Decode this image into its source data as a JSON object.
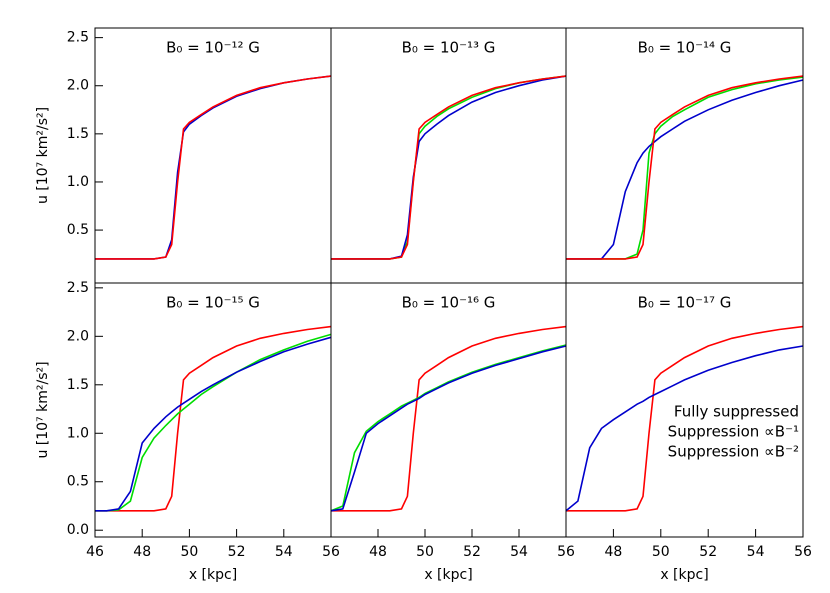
{
  "chart_data": [
    {
      "type": "line",
      "title": "B₀ = 10⁻¹² G",
      "ylabel": "u [10⁷ km²/s²]",
      "x": [
        46,
        46.5,
        47,
        47.5,
        48,
        48.5,
        49,
        49.25,
        49.5,
        49.75,
        50,
        50.5,
        51,
        52,
        53,
        54,
        55,
        56
      ],
      "xlim": [
        46,
        56
      ],
      "ylim": [
        -0.05,
        2.6
      ],
      "yticks": [
        0.5,
        {
          "value": 1,
          "label": "1.0"
        },
        1.5,
        {
          "value": 2,
          "label": "2.0"
        },
        2.5
      ],
      "series": [
        {
          "name": "Suppression ∝B⁻¹",
          "color": "#0000cc",
          "values": [
            0.2,
            0.2,
            0.2,
            0.2,
            0.2,
            0.2,
            0.22,
            0.4,
            1.1,
            1.52,
            1.6,
            1.69,
            1.77,
            1.89,
            1.97,
            2.03,
            2.07,
            2.1
          ]
        },
        {
          "name": "Fully suppressed",
          "color": "#ff0000",
          "values": [
            0.2,
            0.2,
            0.2,
            0.2,
            0.2,
            0.2,
            0.22,
            0.35,
            1.0,
            1.55,
            1.62,
            1.7,
            1.78,
            1.9,
            1.98,
            2.03,
            2.07,
            2.1
          ]
        }
      ]
    },
    {
      "type": "line",
      "title": "B₀ = 10⁻¹³ G",
      "x": [
        46,
        46.5,
        47,
        47.5,
        48,
        48.5,
        49,
        49.25,
        49.5,
        49.75,
        50,
        50.5,
        51,
        52,
        53,
        54,
        55,
        56
      ],
      "xlim": [
        46,
        56
      ],
      "ylim": [
        -0.05,
        2.6
      ],
      "series": [
        {
          "name": "Suppression ∝B⁻²",
          "color": "#00dd00",
          "values": [
            0.2,
            0.2,
            0.2,
            0.2,
            0.2,
            0.2,
            0.22,
            0.38,
            1.02,
            1.5,
            1.58,
            1.68,
            1.76,
            1.88,
            1.97,
            2.03,
            2.07,
            2.1
          ]
        },
        {
          "name": "Suppression ∝B⁻¹",
          "color": "#0000cc",
          "values": [
            0.2,
            0.2,
            0.2,
            0.2,
            0.2,
            0.2,
            0.23,
            0.45,
            1.05,
            1.42,
            1.5,
            1.6,
            1.69,
            1.83,
            1.93,
            2.0,
            2.06,
            2.1
          ]
        },
        {
          "name": "Fully suppressed",
          "color": "#ff0000",
          "values": [
            0.2,
            0.2,
            0.2,
            0.2,
            0.2,
            0.2,
            0.22,
            0.35,
            1.0,
            1.55,
            1.62,
            1.7,
            1.78,
            1.9,
            1.98,
            2.03,
            2.07,
            2.1
          ]
        }
      ]
    },
    {
      "type": "line",
      "title": "B₀ = 10⁻¹⁴ G",
      "x": [
        46,
        46.5,
        47,
        47.5,
        48,
        48.5,
        49,
        49.25,
        49.5,
        49.75,
        50,
        50.5,
        51,
        52,
        53,
        54,
        55,
        56
      ],
      "xlim": [
        46,
        56
      ],
      "ylim": [
        -0.05,
        2.6
      ],
      "series": [
        {
          "name": "Suppression ∝B⁻²",
          "color": "#00dd00",
          "values": [
            0.2,
            0.2,
            0.2,
            0.2,
            0.2,
            0.2,
            0.25,
            0.5,
            1.3,
            1.5,
            1.58,
            1.68,
            1.75,
            1.88,
            1.96,
            2.02,
            2.06,
            2.09
          ]
        },
        {
          "name": "Suppression ∝B⁻¹",
          "color": "#0000cc",
          "values": [
            0.2,
            0.2,
            0.2,
            0.2,
            0.35,
            0.9,
            1.2,
            1.3,
            1.37,
            1.42,
            1.47,
            1.55,
            1.63,
            1.75,
            1.85,
            1.93,
            2.0,
            2.06
          ]
        },
        {
          "name": "Fully suppressed",
          "color": "#ff0000",
          "values": [
            0.2,
            0.2,
            0.2,
            0.2,
            0.2,
            0.2,
            0.22,
            0.35,
            1.0,
            1.55,
            1.62,
            1.7,
            1.78,
            1.9,
            1.98,
            2.03,
            2.07,
            2.1
          ]
        }
      ]
    },
    {
      "type": "line",
      "title": "B₀ = 10⁻¹⁵ G",
      "xlabel": "x [kpc]",
      "ylabel": "u [10⁷ km²/s²]",
      "x": [
        46,
        46.5,
        47,
        47.5,
        48,
        48.5,
        49,
        49.25,
        49.5,
        49.75,
        50,
        50.5,
        51,
        52,
        53,
        54,
        55,
        56
      ],
      "xlim": [
        46,
        56
      ],
      "ylim": [
        -0.07,
        2.55
      ],
      "xticks": [
        46,
        48,
        50,
        52,
        54,
        56
      ],
      "yticks": [
        {
          "value": 0,
          "label": "0.0"
        },
        0.5,
        {
          "value": 1,
          "label": "1.0"
        },
        1.5,
        {
          "value": 2,
          "label": "2.0"
        },
        2.5
      ],
      "series": [
        {
          "name": "Fully suppressed",
          "color": "#ff0000",
          "values": [
            0.2,
            0.2,
            0.2,
            0.2,
            0.2,
            0.2,
            0.22,
            0.35,
            1.0,
            1.55,
            1.62,
            1.7,
            1.78,
            1.9,
            1.98,
            2.03,
            2.07,
            2.1
          ]
        },
        {
          "name": "Suppression ∝B⁻²",
          "color": "#00dd00",
          "values": [
            0.2,
            0.2,
            0.21,
            0.3,
            0.75,
            0.95,
            1.08,
            1.14,
            1.2,
            1.25,
            1.3,
            1.4,
            1.48,
            1.63,
            1.76,
            1.86,
            1.95,
            2.02
          ]
        },
        {
          "name": "Suppression ∝B⁻¹",
          "color": "#0000cc",
          "values": [
            0.2,
            0.2,
            0.22,
            0.4,
            0.9,
            1.05,
            1.17,
            1.22,
            1.27,
            1.31,
            1.35,
            1.43,
            1.5,
            1.63,
            1.74,
            1.84,
            1.92,
            1.99
          ]
        }
      ]
    },
    {
      "type": "line",
      "title": "B₀ = 10⁻¹⁶ G",
      "xlabel": "x [kpc]",
      "x": [
        46,
        46.5,
        47,
        47.5,
        48,
        48.5,
        49,
        49.25,
        49.5,
        49.75,
        50,
        50.5,
        51,
        52,
        53,
        54,
        55,
        56
      ],
      "xlim": [
        46,
        56
      ],
      "ylim": [
        -0.07,
        2.55
      ],
      "xticks": [
        48,
        50,
        52,
        54,
        56
      ],
      "series": [
        {
          "name": "Fully suppressed",
          "color": "#ff0000",
          "values": [
            0.2,
            0.2,
            0.2,
            0.2,
            0.2,
            0.2,
            0.22,
            0.35,
            1.0,
            1.55,
            1.62,
            1.7,
            1.78,
            1.9,
            1.98,
            2.03,
            2.07,
            2.1
          ]
        },
        {
          "name": "Suppression ∝B⁻²",
          "color": "#00dd00",
          "values": [
            0.2,
            0.25,
            0.8,
            1.02,
            1.12,
            1.2,
            1.28,
            1.31,
            1.34,
            1.37,
            1.41,
            1.47,
            1.53,
            1.63,
            1.71,
            1.78,
            1.85,
            1.91
          ]
        },
        {
          "name": "Suppression ∝B⁻¹",
          "color": "#0000cc",
          "values": [
            0.2,
            0.22,
            0.6,
            1.0,
            1.1,
            1.18,
            1.26,
            1.3,
            1.33,
            1.36,
            1.4,
            1.46,
            1.52,
            1.62,
            1.7,
            1.77,
            1.84,
            1.9
          ]
        }
      ]
    },
    {
      "type": "line",
      "title": "B₀ = 10⁻¹⁷ G",
      "xlabel": "x [kpc]",
      "x": [
        46,
        46.5,
        47,
        47.5,
        48,
        48.5,
        49,
        49.25,
        49.5,
        49.75,
        50,
        50.5,
        51,
        52,
        53,
        54,
        55,
        56
      ],
      "xlim": [
        46,
        56
      ],
      "ylim": [
        -0.07,
        2.55
      ],
      "xticks": [
        48,
        50,
        52,
        54,
        56
      ],
      "series": [
        {
          "name": "Fully suppressed",
          "color": "#ff0000",
          "values": [
            0.2,
            0.2,
            0.2,
            0.2,
            0.2,
            0.2,
            0.22,
            0.35,
            1.0,
            1.55,
            1.62,
            1.7,
            1.78,
            1.9,
            1.98,
            2.03,
            2.07,
            2.1
          ]
        },
        {
          "name": "Suppression ∝B⁻¹",
          "color": "#0000cc",
          "values": [
            0.2,
            0.3,
            0.85,
            1.05,
            1.14,
            1.22,
            1.3,
            1.33,
            1.37,
            1.4,
            1.43,
            1.49,
            1.55,
            1.65,
            1.73,
            1.8,
            1.86,
            1.9
          ]
        }
      ],
      "legend_entries": [
        {
          "name": "Fully suppressed",
          "color": "#ff0000"
        },
        {
          "name": "Suppression ∝B⁻¹",
          "color": "#0000cc"
        },
        {
          "name": "Suppression ∝B⁻²",
          "color": "#00dd00"
        }
      ]
    }
  ]
}
